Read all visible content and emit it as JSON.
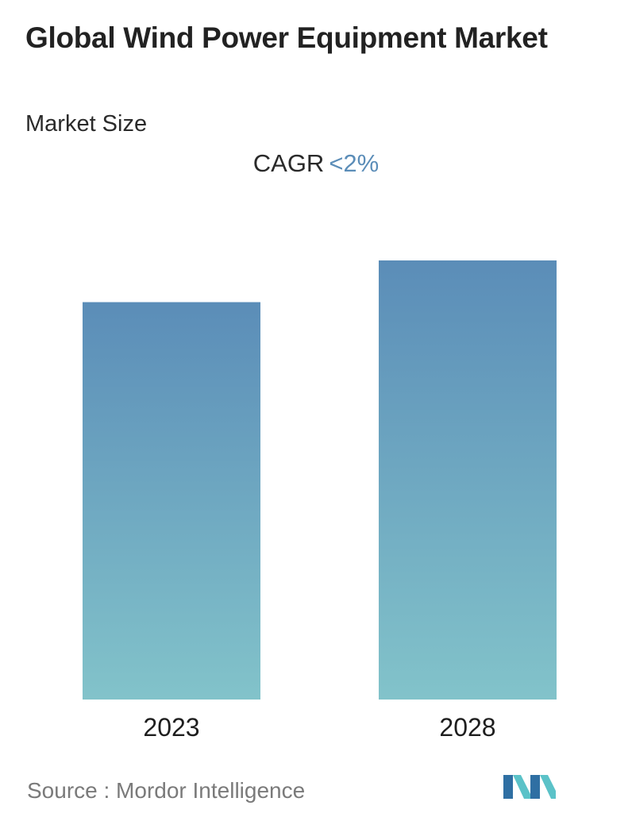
{
  "header": {
    "title": "Global Wind Power Equipment Market",
    "subtitle": "Market Size"
  },
  "cagr": {
    "label": "CAGR",
    "value": "<2%"
  },
  "colors": {
    "bar_top": "#5b8db8",
    "bar_bottom": "#82c3ca",
    "cagr_value": "#5b8db8",
    "logo_dark": "#2f6fa3",
    "logo_light": "#5bc2c8"
  },
  "chart_data": {
    "type": "bar",
    "categories": [
      "2023",
      "2028"
    ],
    "values": [
      0.905,
      1.0
    ],
    "value_note": "relative bar heights; no absolute values printed",
    "title": "",
    "xlabel": "",
    "ylabel": "",
    "grid": false,
    "legend": "none"
  },
  "footer": {
    "source": "Source :  Mordor Intelligence",
    "logo_icon": "mordor-intelligence-logo-icon"
  }
}
